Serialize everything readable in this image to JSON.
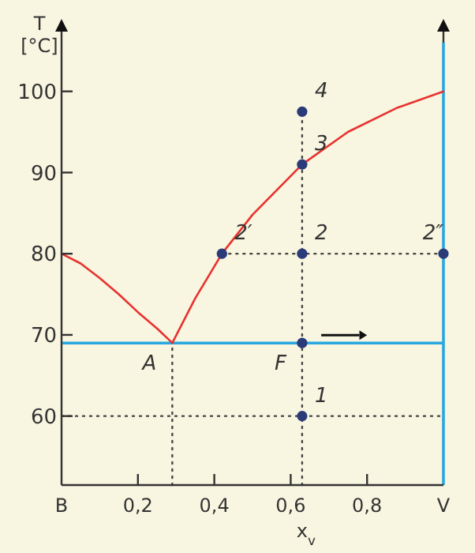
{
  "chart_data": {
    "type": "line",
    "ylabel": "T\n[°C]",
    "xlabel": "x$_{v}$",
    "xlim": [
      0,
      1
    ],
    "ylim": [
      51.5,
      106
    ],
    "xticks": [
      {
        "value": 0,
        "label": "B"
      },
      {
        "value": 0.2,
        "label": "0,2"
      },
      {
        "value": 0.4,
        "label": "0,4"
      },
      {
        "value": 0.6,
        "label": "0,6"
      },
      {
        "value": 0.8,
        "label": "0,8"
      },
      {
        "value": 1,
        "label": "V"
      }
    ],
    "yticks": [
      60,
      70,
      80,
      90,
      100
    ],
    "grid": false,
    "series": [
      {
        "color": "#e8322f",
        "x": [
          0,
          0.05,
          0.1,
          0.15,
          0.2,
          0.25,
          0.29
        ],
        "values": [
          80,
          78.8,
          77,
          75,
          72.8,
          70.8,
          69
        ],
        "line_style": "solid"
      },
      {
        "color": "#e8322f",
        "x": [
          0.29,
          0.35,
          0.42,
          0.5,
          0.63,
          0.75,
          0.88,
          1
        ],
        "values": [
          69,
          74.5,
          80,
          84.8,
          91,
          95,
          98,
          100
        ],
        "line_style": "solid"
      },
      {
        "color": "#444444",
        "x": [
          0,
          1
        ],
        "values": [
          60,
          60
        ],
        "line_style": "dotted"
      },
      {
        "color": "#444444",
        "x": [
          0.42,
          1
        ],
        "values": [
          80,
          80
        ],
        "line_style": "dotted"
      },
      {
        "color": "#444444",
        "x": [
          0.63,
          0.63
        ],
        "values": [
          51.5,
          97.5
        ],
        "line_style": "dotted"
      },
      {
        "color": "#444444",
        "x": [
          0.29,
          0.29
        ],
        "values": [
          51.5,
          69
        ],
        "line_style": "dotted"
      },
      {
        "type": "scatter",
        "color": "#2b3a78",
        "marker": "circle",
        "x": [
          0.63,
          0.63,
          0.63,
          0.63,
          0.63,
          0.42,
          1
        ],
        "values": [
          97.5,
          91,
          80,
          69,
          60,
          80,
          80
        ]
      }
    ],
    "ref_lines": [
      {
        "axis": "y",
        "value": 69,
        "color": "#29a8e0"
      },
      {
        "axis": "x",
        "value": 1,
        "color": "#29a8e0"
      }
    ],
    "annotations": [
      {
        "text": "4",
        "x": 0.63,
        "y": 97.5
      },
      {
        "text": "3",
        "x": 0.63,
        "y": 91
      },
      {
        "text": "2",
        "x": 0.63,
        "y": 80
      },
      {
        "text": "2′",
        "x": 0.42,
        "y": 80
      },
      {
        "text": "2″",
        "x": 1,
        "y": 80
      },
      {
        "text": "1",
        "x": 0.63,
        "y": 60
      },
      {
        "text": "A",
        "x": 0.29,
        "y": 69
      },
      {
        "text": "F",
        "x": 0.63,
        "y": 69
      }
    ]
  }
}
